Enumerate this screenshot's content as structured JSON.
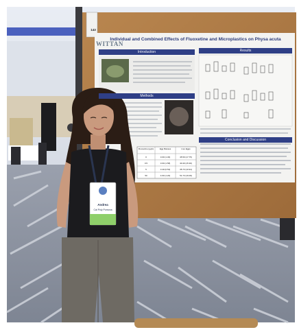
{
  "scene": {
    "description_kind": "photo",
    "colors": {
      "carpet": "#8d93a1",
      "carpet_stripe": "#c9cdd6",
      "poster_board": "#b07a45",
      "poster_paper": "#f3f3f1",
      "poster_blue": "#2f3f86",
      "shirt": "#1b1b1e",
      "pants": "#6e6a63",
      "hair": "#2b1d15",
      "skin": "#c99a7e",
      "lanyard": "#2a3550",
      "badge_green": "#8fcf6a"
    }
  },
  "poster": {
    "title": "Individual and Combined Effects of Fluoxetine and Microplastics on Physa acuta",
    "logo": "WITTAN",
    "sections": {
      "introduction": "Introduction",
      "methods": "Methods",
      "results": "Results",
      "conclusion": "Conclusion and Discussion"
    },
    "table_headers": [
      "Fluoxetine (µg/L)",
      "Egg Masses",
      "Live Eggs"
    ],
    "table_rows": [
      [
        "0",
        "3.00 (1.30)",
        "45.50 (17.75)"
      ],
      [
        "0.5",
        "3.00 (1.58)",
        "40.40 (15.30)"
      ],
      [
        "5",
        "3.40 (0.53)",
        "35.73 (10.91)"
      ],
      [
        "50",
        "4.60 (1.20)",
        "51.73 (16.09)"
      ]
    ]
  },
  "badge": {
    "name": "Andrea",
    "affiliation": "Cal Poly Pomona"
  },
  "sign": {
    "number": "143"
  }
}
